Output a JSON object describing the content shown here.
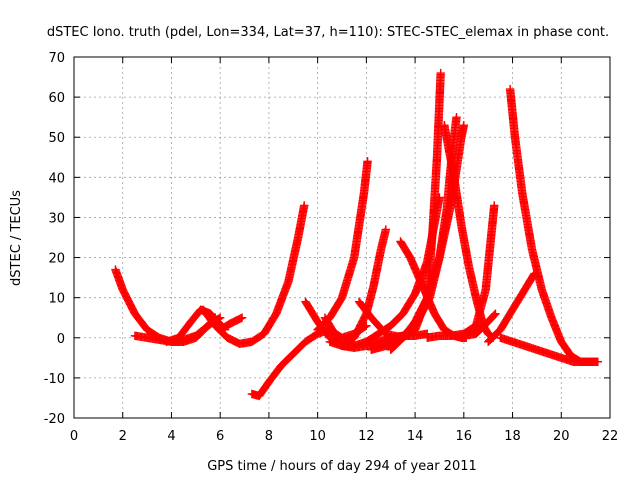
{
  "chart_data": {
    "type": "scatter",
    "title": "dSTEC Iono. truth (pdel, Lon=334, Lat=37, h=110): STEC-STEC_elemax in phase cont.",
    "xlabel": "GPS time / hours of day 294 of year 2011",
    "ylabel": "dSTEC  / TECUs",
    "xlim": [
      0,
      22
    ],
    "ylim": [
      -20,
      70
    ],
    "xticks": [
      "0",
      "2",
      "4",
      "6",
      "8",
      "10",
      "12",
      "14",
      "16",
      "18",
      "20",
      "22"
    ],
    "yticks": [
      "-20",
      "-10",
      "0",
      "10",
      "20",
      "30",
      "40",
      "50",
      "60",
      "70"
    ],
    "grid": true,
    "marker": "plus",
    "color": "#ff0000",
    "series": [
      {
        "x": [
          1.7,
          2.0,
          2.5,
          3.0,
          3.5,
          4.0,
          4.5,
          5.0,
          5.5,
          5.8
        ],
        "y": [
          17,
          12,
          6,
          2,
          0,
          -1,
          -0.5,
          0.5,
          3,
          5
        ]
      },
      {
        "x": [
          2.5,
          3.0,
          3.5,
          4.0,
          4.5,
          5.0,
          5.5,
          6.0
        ],
        "y": [
          0.5,
          0,
          -0.5,
          -1,
          -1,
          0,
          3,
          5
        ]
      },
      {
        "x": [
          3.8,
          4.3,
          4.8,
          5.2,
          5.6,
          5.9,
          6.2
        ],
        "y": [
          -1,
          0,
          4,
          7,
          6,
          4,
          2
        ]
      },
      {
        "x": [
          5.3,
          5.8,
          6.3,
          6.8,
          7.3,
          7.8,
          8.3,
          8.8,
          9.2,
          9.45
        ],
        "y": [
          7,
          3,
          0,
          -1.5,
          -1,
          1,
          6,
          14,
          25,
          33
        ]
      },
      {
        "x": [
          6.0,
          6.4,
          6.9
        ],
        "y": [
          2,
          3.5,
          5
        ]
      },
      {
        "x": [
          7.3,
          7.6,
          8.0,
          8.5,
          9.0,
          9.5,
          10.0,
          10.5,
          11.0,
          11.5,
          12.0
        ],
        "y": [
          -14,
          -14.5,
          -11,
          -7,
          -4,
          -1,
          1,
          2,
          0,
          1,
          3
        ]
      },
      {
        "x": [
          9.5,
          10.0,
          10.5,
          11.0,
          11.5,
          12.0,
          12.5,
          13.0,
          13.5,
          14.0,
          14.5
        ],
        "y": [
          9,
          4,
          0,
          -2,
          -2.5,
          -2,
          -1,
          0,
          0.5,
          0.5,
          1
        ]
      },
      {
        "x": [
          10.0,
          10.5,
          11.0,
          11.5,
          11.7,
          11.9,
          12.05
        ],
        "y": [
          2,
          5,
          10,
          20,
          28,
          36,
          44
        ]
      },
      {
        "x": [
          10.3,
          10.6,
          11.0,
          11.5,
          12.0,
          12.3,
          12.6,
          12.8
        ],
        "y": [
          5,
          2,
          -2,
          0,
          6,
          13,
          22,
          27
        ]
      },
      {
        "x": [
          10.5,
          11.0,
          11.5,
          12.0,
          12.5,
          13.0,
          13.5,
          14.0,
          14.5,
          15.0
        ],
        "y": [
          -1,
          -2,
          -2,
          -1,
          1,
          3,
          6,
          11,
          19,
          35
        ]
      },
      {
        "x": [
          11.7,
          12.2,
          12.8,
          13.5,
          14.0,
          14.5,
          14.7,
          14.9,
          15.05
        ],
        "y": [
          9,
          5,
          1,
          0,
          2,
          10,
          25,
          45,
          66
        ]
      },
      {
        "x": [
          12.2,
          12.8,
          13.4,
          14.0,
          14.6,
          15.0,
          15.3,
          15.5,
          15.7
        ],
        "y": [
          -3,
          -2,
          0,
          3,
          10,
          20,
          32,
          45,
          55
        ]
      },
      {
        "x": [
          13.4,
          13.8,
          14.3,
          14.8,
          15.2,
          15.6,
          15.9,
          16.1
        ],
        "y": [
          24,
          20,
          13,
          6,
          2,
          0.5,
          0,
          0
        ]
      },
      {
        "x": [
          13.0,
          13.5,
          14.0,
          14.5,
          15.0,
          15.5,
          15.9,
          16.0
        ],
        "y": [
          -3,
          0,
          4,
          10,
          20,
          34,
          50,
          53
        ]
      },
      {
        "x": [
          15.2,
          15.6,
          15.9,
          16.2,
          16.5,
          16.8,
          17.0,
          17.2
        ],
        "y": [
          53,
          40,
          28,
          18,
          10,
          3,
          1,
          0
        ]
      },
      {
        "x": [
          14.5,
          15.0,
          15.5,
          16.0,
          16.5,
          16.9,
          17.1,
          17.25
        ],
        "y": [
          0,
          0.5,
          0.5,
          1,
          3,
          12,
          24,
          33
        ]
      },
      {
        "x": [
          16.0,
          16.5,
          17.0,
          17.3
        ],
        "y": [
          0.5,
          1,
          4,
          6
        ]
      },
      {
        "x": [
          17.0,
          17.5,
          18.0,
          18.5,
          18.9
        ],
        "y": [
          -1,
          2,
          7,
          12,
          16
        ]
      },
      {
        "x": [
          17.5,
          18.0,
          18.5,
          19.0,
          19.5,
          20.0,
          20.5,
          21.0,
          21.5
        ],
        "y": [
          0,
          -1,
          -2,
          -3,
          -4,
          -5,
          -6,
          -6,
          -6
        ]
      },
      {
        "x": [
          17.9,
          18.1,
          18.4,
          18.8,
          19.2,
          19.6,
          20.0,
          20.4,
          20.8,
          21.2,
          21.5
        ],
        "y": [
          62,
          50,
          36,
          22,
          12,
          5,
          -1,
          -4.5,
          -6,
          -6,
          -6
        ]
      }
    ]
  }
}
